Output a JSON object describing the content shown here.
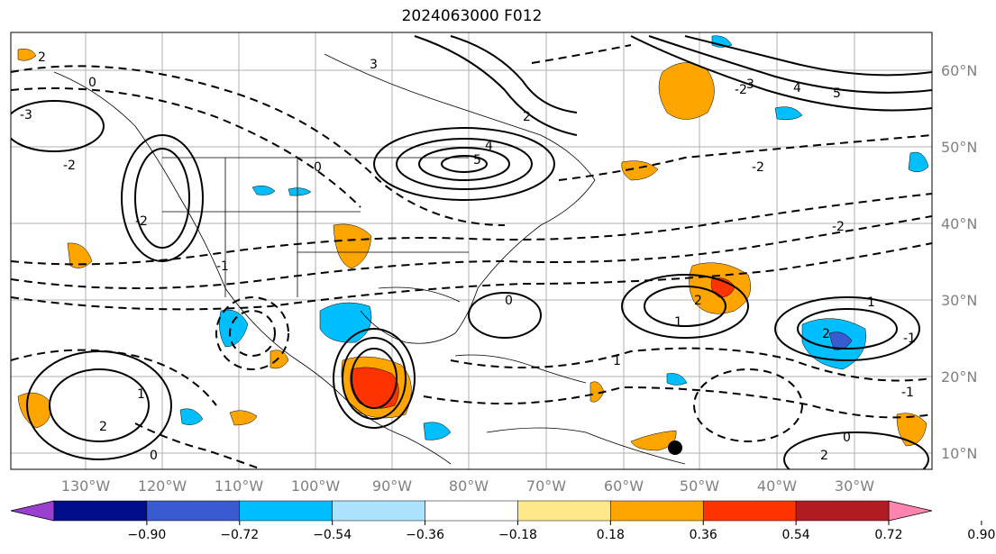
{
  "title": "2024063000 F012",
  "map": {
    "lon_labels": [
      "130°W",
      "120°W",
      "110°W",
      "100°W",
      "90°W",
      "80°W",
      "70°W",
      "60°W",
      "50°W",
      "40°W",
      "30°W"
    ],
    "lat_labels": [
      "60°N",
      "50°N",
      "40°N",
      "30°N",
      "20°N",
      "10°N"
    ],
    "contour_labels": [
      "2",
      "-3",
      "-2",
      "0",
      "3",
      "4",
      "5",
      "2",
      "-2",
      "3",
      "4",
      "5",
      "-2",
      "-1",
      "0",
      "1",
      "2",
      "-2",
      "-1",
      "0",
      "1",
      "2",
      "1",
      "2",
      "0",
      "-1",
      "2",
      "1",
      "0",
      "-2"
    ]
  },
  "colorbar": {
    "ticks": [
      "−0.90",
      "−0.72",
      "−0.54",
      "−0.36",
      "−0.18",
      "0.18",
      "0.36",
      "0.54",
      "0.72",
      "0.90"
    ],
    "colors": [
      "#9a3fd0",
      "#000e8a",
      "#3a5bd0",
      "#00bfff",
      "#aee3ff",
      "#ffffff",
      "#ffe98a",
      "#ffa500",
      "#ff3300",
      "#b01c22",
      "#ff85b0"
    ]
  },
  "marker": {
    "type": "black-dot"
  }
}
